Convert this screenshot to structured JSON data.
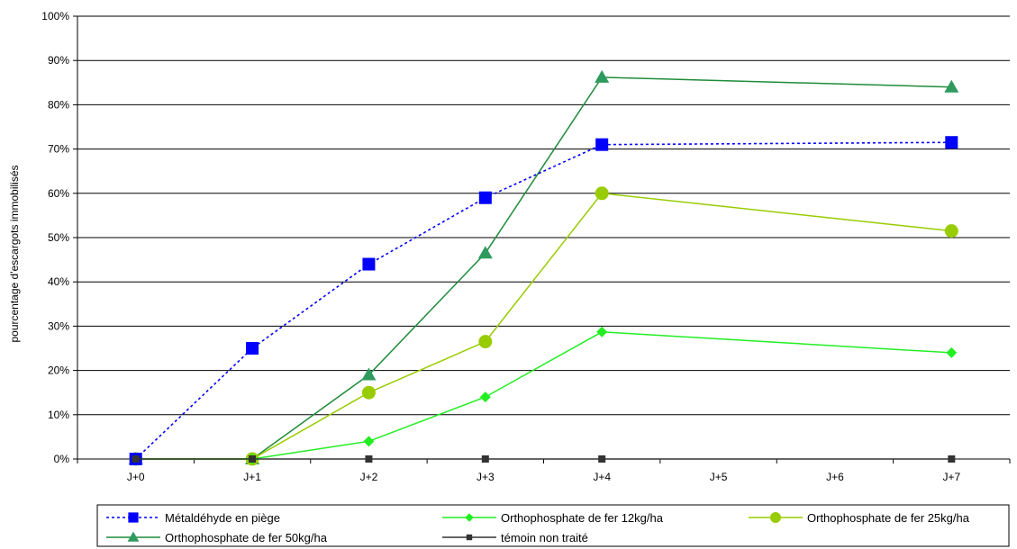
{
  "chart_data": {
    "type": "line",
    "categories": [
      "J+0",
      "J+1",
      "J+2",
      "J+3",
      "J+4",
      "J+5",
      "J+6",
      "J+7"
    ],
    "ylabel": "pourcentage d'escargots immobilisés",
    "xlabel": "",
    "title": "",
    "ylim": [
      0,
      100
    ],
    "yticks": [
      0,
      10,
      20,
      30,
      40,
      50,
      60,
      70,
      80,
      90,
      100
    ],
    "ytick_labels": [
      "0%",
      "10%",
      "20%",
      "30%",
      "40%",
      "50%",
      "60%",
      "70%",
      "80%",
      "90%",
      "100%"
    ],
    "grid": "horizontal",
    "legend_position": "bottom",
    "series": [
      {
        "name": "Métaldéhyde en piège",
        "color": "#0000ff",
        "line_style": "dotted",
        "marker": "square",
        "points": [
          {
            "x": "J+0",
            "y": 0
          },
          {
            "x": "J+1",
            "y": 25
          },
          {
            "x": "J+2",
            "y": 44
          },
          {
            "x": "J+3",
            "y": 59
          },
          {
            "x": "J+4",
            "y": 71
          },
          {
            "x": "J+7",
            "y": 71.5
          }
        ]
      },
      {
        "name": "Orthophosphate de fer 12kg/ha",
        "color": "#22ee22",
        "line_style": "solid",
        "marker": "diamond",
        "points": [
          {
            "x": "J+0",
            "y": 0
          },
          {
            "x": "J+1",
            "y": 0
          },
          {
            "x": "J+2",
            "y": 4
          },
          {
            "x": "J+3",
            "y": 14
          },
          {
            "x": "J+4",
            "y": 28.7
          },
          {
            "x": "J+7",
            "y": 24
          }
        ]
      },
      {
        "name": "Orthophosphate de fer 25kg/ha",
        "color": "#99cc00",
        "line_style": "solid",
        "marker": "circle",
        "points": [
          {
            "x": "J+0",
            "y": 0
          },
          {
            "x": "J+1",
            "y": 0
          },
          {
            "x": "J+2",
            "y": 15
          },
          {
            "x": "J+3",
            "y": 26.5
          },
          {
            "x": "J+4",
            "y": 60
          },
          {
            "x": "J+7",
            "y": 51.5
          }
        ]
      },
      {
        "name": "Orthophosphate de fer 50kg/ha",
        "color": "#1e8c3a",
        "marker_color": "#2e9a5e",
        "line_style": "solid",
        "marker": "triangle",
        "points": [
          {
            "x": "J+0",
            "y": 0
          },
          {
            "x": "J+1",
            "y": 0
          },
          {
            "x": "J+2",
            "y": 19
          },
          {
            "x": "J+3",
            "y": 46.5
          },
          {
            "x": "J+4",
            "y": 86.2
          },
          {
            "x": "J+7",
            "y": 84
          }
        ]
      },
      {
        "name": "témoin non traité",
        "color": "#333333",
        "line_style": "solid",
        "marker": "square-small",
        "points": [
          {
            "x": "J+0",
            "y": 0
          },
          {
            "x": "J+1",
            "y": 0
          },
          {
            "x": "J+2",
            "y": 0
          },
          {
            "x": "J+3",
            "y": 0
          },
          {
            "x": "J+4",
            "y": 0
          },
          {
            "x": "J+7",
            "y": 0
          }
        ]
      }
    ]
  }
}
